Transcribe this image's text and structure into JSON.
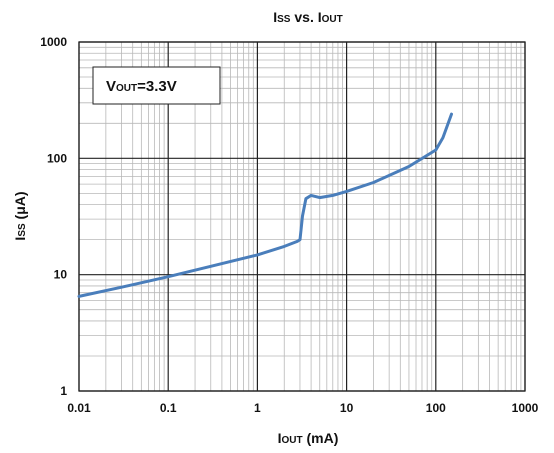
{
  "chart_data": {
    "type": "line",
    "title": {
      "main": "I",
      "sub": "SS",
      "rest": " vs. I",
      "sub2": "OUT"
    },
    "xlabel": {
      "main": "I",
      "sub": "OUT",
      "rest": " (mA)"
    },
    "ylabel": {
      "main": "I",
      "sub": "SS",
      "rest": " (μA)"
    },
    "annotation": {
      "main": "V",
      "sub": "OUT",
      "rest": "=3.3V"
    },
    "x_scale": "log",
    "y_scale": "log",
    "xlim": [
      0.01,
      1000
    ],
    "ylim": [
      1,
      1000
    ],
    "x_ticks": [
      "0.01",
      "0.1",
      "1",
      "10",
      "100",
      "1000"
    ],
    "y_ticks": [
      "1",
      "10",
      "100",
      "1000"
    ],
    "grid": true,
    "legend": "none",
    "line_color": "#4a7ebb",
    "series": [
      {
        "x": [
          0.01,
          0.03,
          0.1,
          0.3,
          1,
          2,
          2.8,
          3.0,
          3.2,
          3.5,
          4.0,
          5,
          7,
          10,
          20,
          50,
          100,
          120,
          150
        ],
        "y": [
          6.5,
          7.8,
          9.6,
          11.8,
          14.8,
          17.5,
          19.3,
          20,
          32,
          45,
          48,
          46,
          48,
          52,
          62,
          85,
          118,
          150,
          240
        ]
      }
    ]
  }
}
